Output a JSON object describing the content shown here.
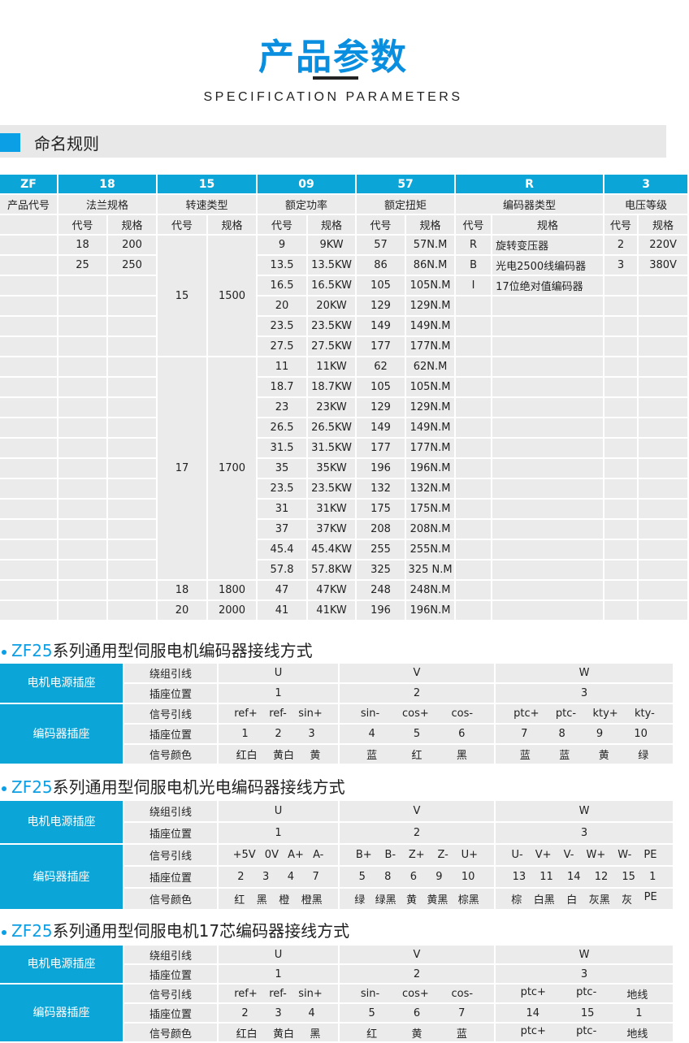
{
  "header": {
    "title": "产品参数",
    "subtitle": "SPECIFICATION PARAMETERS"
  },
  "section": {
    "label": "命名规则"
  },
  "spec": {
    "codes": [
      "ZF",
      "18",
      "15",
      "09",
      "57",
      "R",
      "3"
    ],
    "names": [
      "产品代号",
      "法兰规格",
      "转速类型",
      "额定功率",
      "额定扭矩",
      "编码器类型",
      "电压等级"
    ],
    "sub": [
      "代号",
      "规格"
    ],
    "flange": [
      [
        "18",
        "200"
      ],
      [
        "25",
        "250"
      ]
    ],
    "speed": [
      {
        "code": "15",
        "spec": "1500",
        "rows": 6
      },
      {
        "code": "17",
        "spec": "1700",
        "rows": 11
      },
      {
        "code": "18",
        "spec": "1800",
        "rows": 1
      },
      {
        "code": "20",
        "spec": "2000",
        "rows": 1
      }
    ],
    "power": [
      [
        "9",
        "9KW"
      ],
      [
        "13.5",
        "13.5KW"
      ],
      [
        "16.5",
        "16.5KW"
      ],
      [
        "20",
        "20KW"
      ],
      [
        "23.5",
        "23.5KW"
      ],
      [
        "27.5",
        "27.5KW"
      ],
      [
        "11",
        "11KW"
      ],
      [
        "18.7",
        "18.7KW"
      ],
      [
        "23",
        "23KW"
      ],
      [
        "26.5",
        "26.5KW"
      ],
      [
        "31.5",
        "31.5KW"
      ],
      [
        "35",
        "35KW"
      ],
      [
        "23.5",
        "23.5KW"
      ],
      [
        "31",
        "31KW"
      ],
      [
        "37",
        "37KW"
      ],
      [
        "45.4",
        "45.4KW"
      ],
      [
        "57.8",
        "57.8KW"
      ],
      [
        "47",
        "47KW"
      ],
      [
        "41",
        "41KW"
      ]
    ],
    "torque": [
      [
        "57",
        "57N.M"
      ],
      [
        "86",
        "86N.M"
      ],
      [
        "105",
        "105N.M"
      ],
      [
        "129",
        "129N.M"
      ],
      [
        "149",
        "149N.M"
      ],
      [
        "177",
        "177N.M"
      ],
      [
        "62",
        "62N.M"
      ],
      [
        "105",
        "105N.M"
      ],
      [
        "129",
        "129N.M"
      ],
      [
        "149",
        "149N.M"
      ],
      [
        "177",
        "177N.M"
      ],
      [
        "196",
        "196N.M"
      ],
      [
        "132",
        "132N.M"
      ],
      [
        "175",
        "175N.M"
      ],
      [
        "208",
        "208N.M"
      ],
      [
        "255",
        "255N.M"
      ],
      [
        "325",
        "325 N.M"
      ],
      [
        "248",
        "248N.M"
      ],
      [
        "196",
        "196N.M"
      ]
    ],
    "encoder": [
      [
        "R",
        "旋转变压器"
      ],
      [
        "B",
        "光电2500线编码器"
      ],
      [
        "I",
        "17位绝对值编码器"
      ]
    ],
    "voltage": [
      [
        "2",
        "220V"
      ],
      [
        "3",
        "380V"
      ]
    ]
  },
  "wiring": [
    {
      "title_prefix": "ZF25",
      "title": "系列通用型伺服电机编码器接线方式",
      "left_top": "电机电源插座",
      "left_bottom": "编码器插座",
      "labels": [
        "绕组引线",
        "插座位置",
        "信号引线",
        "插座位置",
        "信号颜色"
      ],
      "phases": [
        "U",
        "V",
        "W"
      ],
      "positions": [
        "1",
        "2",
        "3"
      ],
      "groups": [
        {
          "signals": [
            "ref+",
            "ref-",
            "sin+"
          ],
          "pins": [
            "1",
            "2",
            "3"
          ],
          "colors": [
            "红白",
            "黄白",
            "黄"
          ]
        },
        {
          "signals": [
            "sin-",
            "cos+",
            "cos-"
          ],
          "pins": [
            "4",
            "5",
            "6"
          ],
          "colors": [
            "蓝",
            "红",
            "黑"
          ]
        },
        {
          "signals": [
            "ptc+",
            "ptc-",
            "kty+",
            "kty-"
          ],
          "pins": [
            "7",
            "8",
            "9",
            "10"
          ],
          "colors": [
            "蓝",
            "蓝",
            "黄",
            "绿"
          ]
        }
      ]
    },
    {
      "title_prefix": "ZF25",
      "title": "系列通用型伺服电机光电编码器接线方式",
      "left_top": "电机电源插座",
      "left_bottom": "编码器插座",
      "labels": [
        "绕组引线",
        "插座位置",
        "信号引线",
        "插座位置",
        "信号颜色"
      ],
      "phases": [
        "U",
        "V",
        "W"
      ],
      "positions": [
        "1",
        "2",
        "3"
      ],
      "groups": [
        {
          "signals": [
            "+5V",
            "0V",
            "A+",
            "A-"
          ],
          "pins": [
            "2",
            "3",
            "4",
            "7"
          ],
          "colors": [
            "红",
            "黑",
            "橙",
            "橙黑"
          ]
        },
        {
          "signals": [
            "B+",
            "B-",
            "Z+",
            "Z-",
            "U+"
          ],
          "pins": [
            "5",
            "8",
            "6",
            "9",
            "10"
          ],
          "colors": [
            "绿",
            "绿黑",
            "黄",
            "黄黑",
            "棕黑"
          ]
        },
        {
          "signals": [
            "U-",
            "V+",
            "V-",
            "W+",
            "W-",
            "PE"
          ],
          "pins": [
            "13",
            "11",
            "14",
            "12",
            "15",
            "1"
          ],
          "colors": [
            "棕",
            "白黑",
            "白",
            "灰黑",
            "灰",
            "PE"
          ]
        }
      ]
    },
    {
      "title_prefix": "ZF25",
      "title": "系列通用型伺服电机17芯编码器接线方式",
      "left_top": "电机电源插座",
      "left_bottom": "编码器插座",
      "labels": [
        "绕组引线",
        "插座位置",
        "信号引线",
        "插座位置",
        "信号颜色"
      ],
      "phases": [
        "U",
        "V",
        "W"
      ],
      "positions": [
        "1",
        "2",
        "3"
      ],
      "groups": [
        {
          "signals": [
            "ref+",
            "ref-",
            "sin+"
          ],
          "pins": [
            "2",
            "3",
            "4"
          ],
          "colors": [
            "红白",
            "黄白",
            "黑"
          ]
        },
        {
          "signals": [
            "sin-",
            "cos+",
            "cos-"
          ],
          "pins": [
            "5",
            "6",
            "7"
          ],
          "colors": [
            "红",
            "黄",
            "蓝"
          ]
        },
        {
          "signals": [
            "ptc+",
            "ptc-",
            "地线"
          ],
          "pins": [
            "14",
            "15",
            "1"
          ],
          "colors": [
            "ptc+",
            "ptc-",
            "地线"
          ]
        }
      ]
    }
  ],
  "colors": {
    "accent": "#0ba5d8",
    "title": "#0a8fe0",
    "cell": "#ebebeb"
  }
}
